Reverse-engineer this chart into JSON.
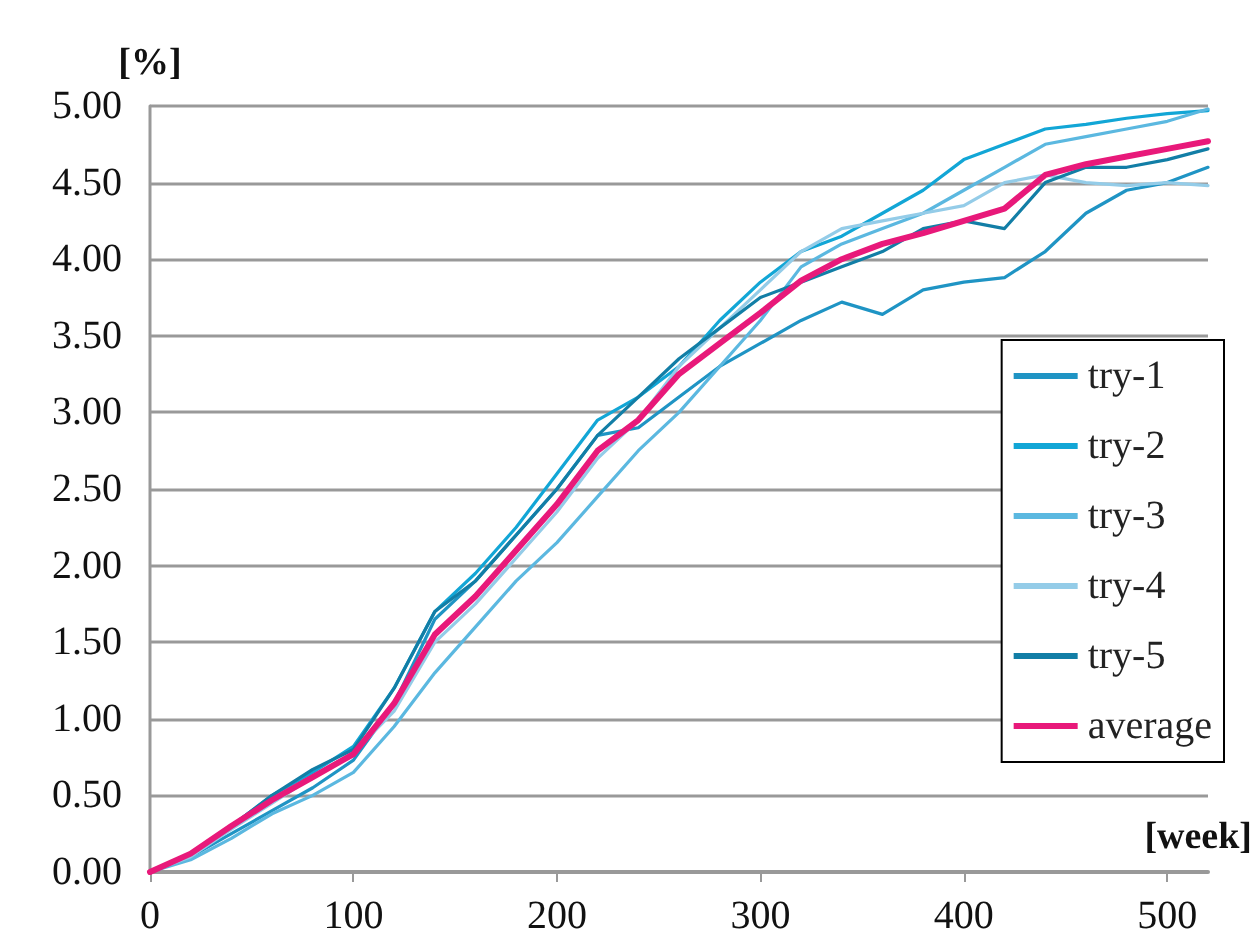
{
  "chart_data": {
    "type": "line",
    "xlabel": "[week]",
    "ylabel": "[%]",
    "xlim": [
      0,
      520
    ],
    "xticks": [
      0,
      100,
      200,
      300,
      400,
      500
    ],
    "ylim": [
      0,
      5
    ],
    "yticks": [
      {
        "value": 0,
        "label": "0.00"
      },
      {
        "value": 0.5,
        "label": "0.50"
      },
      {
        "value": 1,
        "label": "1.00"
      },
      {
        "value": 1.5,
        "label": "1.50"
      },
      {
        "value": 2,
        "label": "2.00"
      },
      {
        "value": 2.5,
        "label": "2.50"
      },
      {
        "value": 3,
        "label": "3.00"
      },
      {
        "value": 3.5,
        "label": "3.50"
      },
      {
        "value": 4,
        "label": "4.00"
      },
      {
        "value": 4.5,
        "label": "4.50"
      },
      {
        "value": 5,
        "label": "5.00"
      }
    ],
    "grid": "y",
    "legend": "right",
    "marker": "none",
    "line_style": "solid",
    "x": [
      0,
      20,
      40,
      60,
      80,
      100,
      120,
      140,
      160,
      180,
      200,
      220,
      240,
      260,
      280,
      300,
      320,
      340,
      360,
      380,
      400,
      420,
      440,
      460,
      480,
      500,
      520
    ],
    "series": [
      {
        "name": "try-1",
        "color": "#1f94c4",
        "values": [
          0,
          0.1,
          0.25,
          0.4,
          0.55,
          0.73,
          1.1,
          1.65,
          1.9,
          2.2,
          2.5,
          2.85,
          2.9,
          3.1,
          3.3,
          3.45,
          3.6,
          3.72,
          3.64,
          3.8,
          3.85,
          3.88,
          4.05,
          4.3,
          4.45,
          4.5,
          4.6
        ]
      },
      {
        "name": "try-2",
        "color": "#12a6d6",
        "values": [
          0,
          0.12,
          0.3,
          0.5,
          0.65,
          0.82,
          1.2,
          1.7,
          1.95,
          2.25,
          2.6,
          2.95,
          3.1,
          3.3,
          3.6,
          3.85,
          4.05,
          4.15,
          4.3,
          4.45,
          4.65,
          4.75,
          4.85,
          4.88,
          4.92,
          4.95,
          4.97
        ]
      },
      {
        "name": "try-3",
        "color": "#5bb8e0",
        "values": [
          0,
          0.08,
          0.22,
          0.38,
          0.5,
          0.65,
          0.95,
          1.3,
          1.6,
          1.9,
          2.15,
          2.45,
          2.75,
          3.0,
          3.3,
          3.6,
          3.95,
          4.1,
          4.2,
          4.3,
          4.45,
          4.6,
          4.75,
          4.8,
          4.85,
          4.9,
          4.98
        ]
      },
      {
        "name": "try-4",
        "color": "#94cce8",
        "values": [
          0,
          0.1,
          0.28,
          0.45,
          0.62,
          0.78,
          1.05,
          1.5,
          1.75,
          2.05,
          2.35,
          2.7,
          2.95,
          3.3,
          3.55,
          3.8,
          4.05,
          4.2,
          4.25,
          4.3,
          4.35,
          4.5,
          4.55,
          4.5,
          4.48,
          4.5,
          4.48
        ]
      },
      {
        "name": "try-5",
        "color": "#127ea6",
        "values": [
          0,
          0.12,
          0.3,
          0.5,
          0.67,
          0.8,
          1.2,
          1.7,
          1.9,
          2.2,
          2.5,
          2.85,
          3.1,
          3.35,
          3.55,
          3.75,
          3.85,
          3.95,
          4.05,
          4.2,
          4.25,
          4.2,
          4.5,
          4.6,
          4.6,
          4.65,
          4.72
        ]
      },
      {
        "name": "average",
        "color": "#e8197a",
        "values": [
          0,
          0.12,
          0.3,
          0.47,
          0.62,
          0.77,
          1.1,
          1.55,
          1.8,
          2.1,
          2.4,
          2.75,
          2.95,
          3.25,
          3.45,
          3.65,
          3.86,
          4.0,
          4.1,
          4.17,
          4.25,
          4.33,
          4.55,
          4.62,
          4.67,
          4.72,
          4.77
        ]
      }
    ]
  }
}
